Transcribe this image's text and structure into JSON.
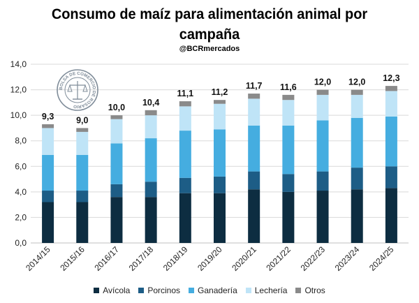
{
  "header": {
    "title_line1": "Consumo de maíz para alimentación animal por",
    "title_line2": "campaña",
    "handle": "@BCRmercados"
  },
  "logo": {
    "text": "BOLSA DE COMERCIO DE ROSARIO"
  },
  "chart_data": {
    "type": "bar",
    "stacked": true,
    "categories": [
      "2014/15",
      "2015/16",
      "2016/17",
      "2017/18",
      "2018/19",
      "2019/20",
      "2020/21",
      "2021/22",
      "2022/23",
      "2023/24",
      "2024/25"
    ],
    "series": [
      {
        "name": "Avícola",
        "color": "#0d2d41",
        "values": [
          3.2,
          3.2,
          3.6,
          3.6,
          3.9,
          3.9,
          4.2,
          4.0,
          4.1,
          4.2,
          4.3
        ]
      },
      {
        "name": "Porcinos",
        "color": "#1d5d86",
        "values": [
          0.9,
          0.9,
          1.0,
          1.2,
          1.2,
          1.3,
          1.4,
          1.4,
          1.5,
          1.7,
          1.7
        ]
      },
      {
        "name": "Ganadería",
        "color": "#45ade0",
        "values": [
          2.8,
          2.8,
          3.2,
          3.4,
          3.7,
          3.7,
          3.6,
          3.8,
          4.0,
          3.9,
          3.9
        ]
      },
      {
        "name": "Lechería",
        "color": "#bfe4f7",
        "values": [
          2.1,
          1.8,
          1.9,
          1.8,
          1.9,
          2.0,
          2.1,
          2.0,
          2.0,
          1.8,
          2.0
        ]
      },
      {
        "name": "Otros",
        "color": "#8a8a8a",
        "values": [
          0.3,
          0.3,
          0.3,
          0.4,
          0.4,
          0.3,
          0.4,
          0.4,
          0.4,
          0.4,
          0.4
        ]
      }
    ],
    "totals": [
      "9,3",
      "9,0",
      "10,0",
      "10,4",
      "11,1",
      "11,2",
      "11,7",
      "11,6",
      "12,0",
      "12,0",
      "12,3"
    ],
    "yticks": [
      "0,0",
      "2,0",
      "4,0",
      "6,0",
      "8,0",
      "10,0",
      "12,0",
      "14,0"
    ],
    "ylim": [
      0,
      14
    ],
    "grid": true,
    "legend_position": "bottom"
  }
}
